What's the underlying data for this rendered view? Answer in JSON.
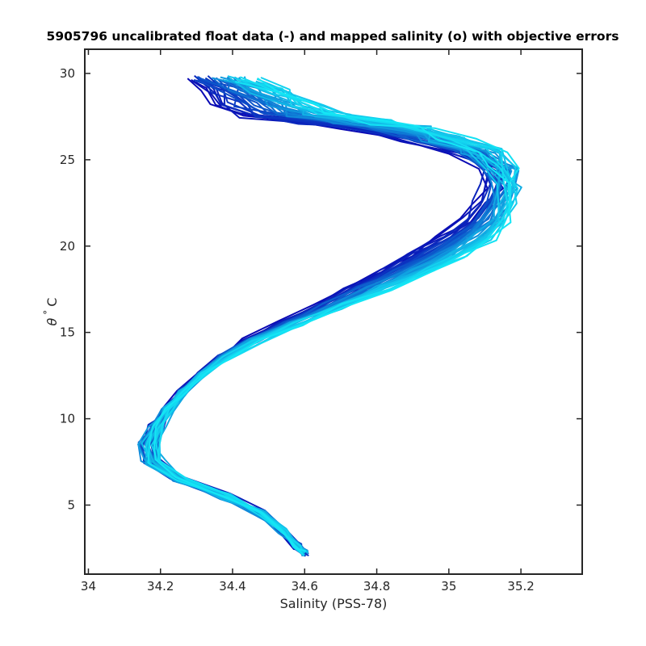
{
  "chart_data": {
    "type": "line",
    "title": "5905796 uncalibrated float data (-) and mapped salinity (o) with objective errors",
    "xlabel": "Salinity (PSS-78)",
    "ylabel_symbol": "θ",
    "ylabel_degree": "°",
    "ylabel_unit": "C",
    "xlim": [
      33.99,
      35.37
    ],
    "ylim": [
      1.0,
      31.4
    ],
    "xticks": [
      34,
      34.2,
      34.4,
      34.6,
      34.8,
      35,
      35.2
    ],
    "xtick_labels": [
      "34",
      "34.2",
      "34.4",
      "34.6",
      "34.8",
      "35",
      "35.2"
    ],
    "yticks": [
      5,
      10,
      15,
      20,
      25,
      30
    ],
    "ytick_labels": [
      "5",
      "10",
      "15",
      "20",
      "25",
      "30"
    ],
    "grid": false,
    "colors": {
      "start": "#0a0ab4",
      "end": "#14e6f5",
      "axis": "#262626"
    },
    "profile_count": 44,
    "mean_profile": [
      {
        "theta": 2.2,
        "salinity": 34.6
      },
      {
        "theta": 2.6,
        "salinity": 34.58
      },
      {
        "theta": 3.5,
        "salinity": 34.54
      },
      {
        "theta": 4.5,
        "salinity": 34.48
      },
      {
        "theta": 5.5,
        "salinity": 34.38
      },
      {
        "theta": 6.5,
        "salinity": 34.25
      },
      {
        "theta": 7.5,
        "salinity": 34.18
      },
      {
        "theta": 8.5,
        "salinity": 34.17
      },
      {
        "theta": 9.5,
        "salinity": 34.19
      },
      {
        "theta": 10.5,
        "salinity": 34.22
      },
      {
        "theta": 11.5,
        "salinity": 34.26
      },
      {
        "theta": 12.5,
        "salinity": 34.31
      },
      {
        "theta": 13.5,
        "salinity": 34.37
      },
      {
        "theta": 14.5,
        "salinity": 34.45
      },
      {
        "theta": 15.5,
        "salinity": 34.55
      },
      {
        "theta": 16.5,
        "salinity": 34.66
      },
      {
        "theta": 17.5,
        "salinity": 34.76
      },
      {
        "theta": 18.5,
        "salinity": 34.86
      },
      {
        "theta": 19.5,
        "salinity": 34.95
      },
      {
        "theta": 20.5,
        "salinity": 35.03
      },
      {
        "theta": 21.5,
        "salinity": 35.09
      },
      {
        "theta": 22.5,
        "salinity": 35.12
      },
      {
        "theta": 23.5,
        "salinity": 35.14
      },
      {
        "theta": 24.5,
        "salinity": 35.13
      },
      {
        "theta": 25.5,
        "salinity": 35.05
      },
      {
        "theta": 26.2,
        "salinity": 34.92
      },
      {
        "theta": 26.8,
        "salinity": 34.8
      },
      {
        "theta": 27.2,
        "salinity": 34.66
      },
      {
        "theta": 27.6,
        "salinity": 34.52
      },
      {
        "theta": 28.2,
        "salinity": 34.45
      },
      {
        "theta": 29.0,
        "salinity": 34.4
      },
      {
        "theta": 29.7,
        "salinity": 34.34
      }
    ]
  }
}
